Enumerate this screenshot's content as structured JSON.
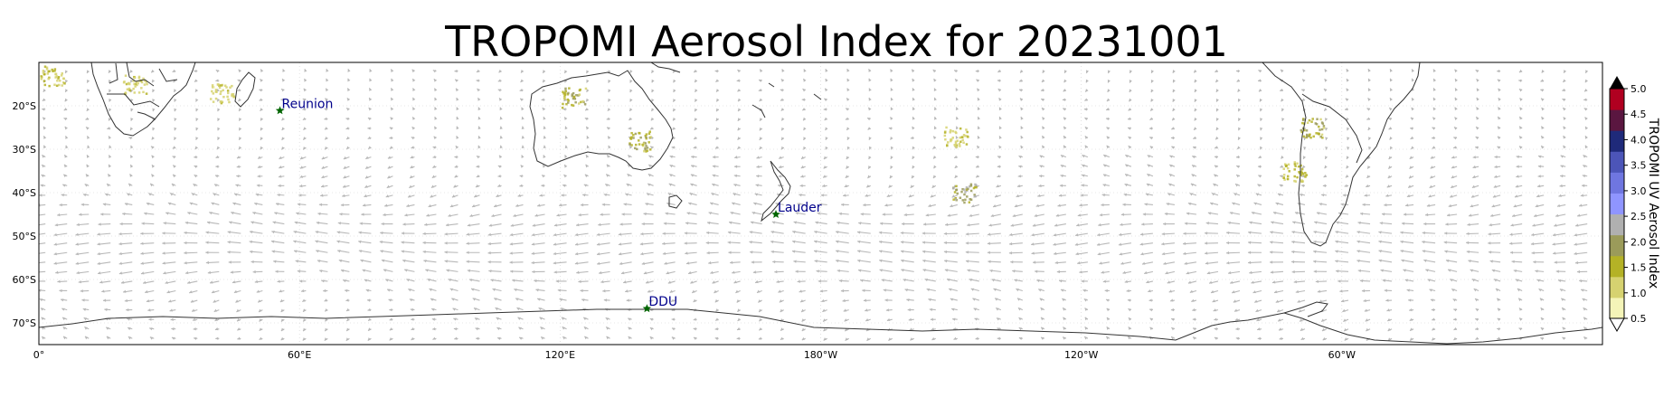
{
  "title": "TROPOMI Aerosol Index for 20231001",
  "map": {
    "projection": "PlateCarree (central longitude 180)",
    "extent": {
      "lon_min": 0,
      "lon_max": 360,
      "lat_min": -75,
      "lat_max": -10
    },
    "lat_ticks": [
      {
        "lat": -20,
        "label": "20°S"
      },
      {
        "lat": -30,
        "label": "30°S"
      },
      {
        "lat": -40,
        "label": "40°S"
      },
      {
        "lat": -50,
        "label": "50°S"
      },
      {
        "lat": -60,
        "label": "60°S"
      },
      {
        "lat": -70,
        "label": "70°S"
      }
    ],
    "lon_ticks": [
      {
        "lon": 0,
        "label": "0°"
      },
      {
        "lon": 60,
        "label": "60°E"
      },
      {
        "lon": 120,
        "label": "120°E"
      },
      {
        "lon": 180,
        "label": "180°W"
      },
      {
        "lon": 240,
        "label": "120°W"
      },
      {
        "lon": 300,
        "label": "60°W"
      }
    ],
    "gridlines": true,
    "wind_vectors": "grey quiver arrows, mostly westerly flow",
    "colors": {
      "coast": "#333333",
      "arrow": "#b8b8b8",
      "station_marker": "#006400",
      "station_text": "#00008b",
      "grid": "#d0d0d0"
    }
  },
  "stations": [
    {
      "name": "Reunion",
      "lon": 55.5,
      "lat": -21.1
    },
    {
      "name": "Lauder",
      "lon": 169.7,
      "lat": -45.0
    },
    {
      "name": "DDU",
      "lon": 140.0,
      "lat": -66.7
    }
  ],
  "aerosol_patches": [
    {
      "region": "southern Africa",
      "lon": 22,
      "lat": -15,
      "level": 1.0
    },
    {
      "region": "Madagascar channel",
      "lon": 42,
      "lat": -17,
      "level": 1.0
    },
    {
      "region": "western Africa coast",
      "lon": 3,
      "lat": -13,
      "level": 1.2
    },
    {
      "region": "northern Australia",
      "lon": 123,
      "lat": -18,
      "level": 1.5
    },
    {
      "region": "central Australia",
      "lon": 138,
      "lat": -28,
      "level": 1.5
    },
    {
      "region": "south Pacific",
      "lon": 213,
      "lat": -40,
      "level": 1.8
    },
    {
      "region": "south Pacific 2",
      "lon": 211,
      "lat": -27,
      "level": 1.0
    },
    {
      "region": "South America west",
      "lon": 293,
      "lat": -25,
      "level": 1.5
    },
    {
      "region": "South America Chile",
      "lon": 289,
      "lat": -35,
      "level": 1.2
    }
  ],
  "colorbar": {
    "label": "TROPOMI UV Aerosol Index",
    "ticks": [
      "0.5",
      "1.0",
      "1.5",
      "2.0",
      "2.5",
      "3.0",
      "3.5",
      "4.0",
      "4.5",
      "5.0"
    ],
    "range": [
      0.5,
      5.0
    ],
    "extend": "both",
    "colors": [
      "#fffff0",
      "#f4f4b8",
      "#d6d270",
      "#b4b226",
      "#9b9b5a",
      "#b0b0b0",
      "#8f95ff",
      "#6f76e0",
      "#4c55b8",
      "#1f2a7a",
      "#5a1640",
      "#b00020",
      "#e0001a"
    ]
  }
}
